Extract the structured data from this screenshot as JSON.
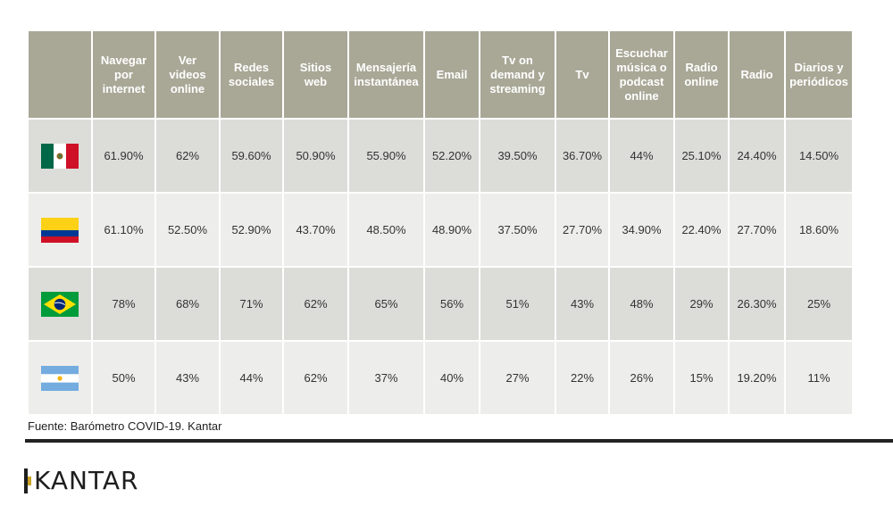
{
  "chart_data": {
    "type": "table",
    "columns": [
      "",
      "Navegar por internet",
      "Ver videos online",
      "Redes sociales",
      "Sitios web",
      "Mensajería instantánea",
      "Email",
      "Tv on demand y streaming",
      "Tv",
      "Escuchar música o podcast online",
      "Radio online",
      "Radio",
      "Diarios y periódicos"
    ],
    "header_lines": [
      [],
      [
        "Navegar",
        "por",
        "internet"
      ],
      [
        "Ver",
        "videos",
        "online"
      ],
      [
        "Redes",
        "sociales"
      ],
      [
        "Sitios",
        "web"
      ],
      [
        "Mensajería",
        "instantánea"
      ],
      [
        "Email"
      ],
      [
        "Tv on",
        "demand y",
        "streaming"
      ],
      [
        "Tv"
      ],
      [
        "Escuchar",
        "música o",
        "podcast",
        "online"
      ],
      [
        "Radio",
        "online"
      ],
      [
        "Radio"
      ],
      [
        "Diarios y",
        "periódicos"
      ]
    ],
    "rows": [
      {
        "flag": "mexico-flag-icon",
        "values": [
          "61.90%",
          "62%",
          "59.60%",
          "50.90%",
          "55.90%",
          "52.20%",
          "39.50%",
          "36.70%",
          "44%",
          "25.10%",
          "24.40%",
          "14.50%"
        ]
      },
      {
        "flag": "colombia-flag-icon",
        "values": [
          "61.10%",
          "52.50%",
          "52.90%",
          "43.70%",
          "48.50%",
          "48.90%",
          "37.50%",
          "27.70%",
          "34.90%",
          "22.40%",
          "27.70%",
          "18.60%"
        ]
      },
      {
        "flag": "brazil-flag-icon",
        "values": [
          "78%",
          "68%",
          "71%",
          "62%",
          "65%",
          "56%",
          "51%",
          "43%",
          "48%",
          "29%",
          "26.30%",
          "25%"
        ]
      },
      {
        "flag": "argentina-flag-icon",
        "values": [
          "50%",
          "43%",
          "44%",
          "62%",
          "37%",
          "40%",
          "27%",
          "22%",
          "26%",
          "15%",
          "19.20%",
          "11%"
        ]
      }
    ]
  },
  "source": "Fuente: Barómetro COVID-19. Kantar",
  "logo": "KANTAR",
  "colors": {
    "header_bg": "#a9a897",
    "row_odd_bg": "#dcdcd9",
    "row_even_bg": "#ededeb",
    "logo_accent": "#c9a227"
  }
}
